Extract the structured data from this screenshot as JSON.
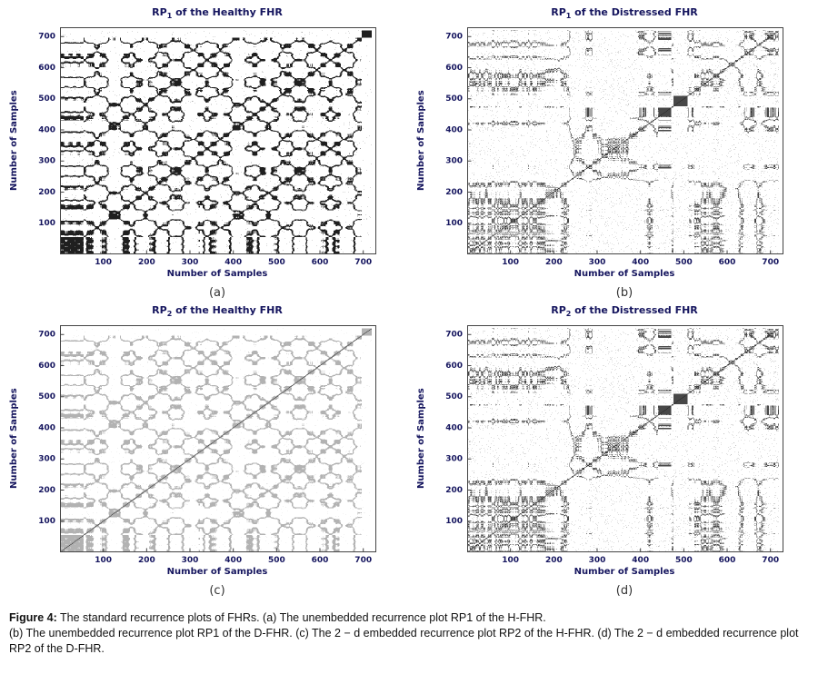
{
  "figure": {
    "caption_label": "Figure 4:",
    "caption_line1": "The standard recurrence plots of FHRs. (a) The unembedded recurrence plot RP1 of the H-FHR.",
    "caption_line2": "(b) The unembedded recurrence plot RP1 of the D-FHR. (c) The 2 − d embedded recurrence plot RP2 of the H-FHR. (d) The 2 − d embedded recurrence plot RP2 of the D-FHR."
  },
  "chart_data": [
    {
      "type": "heatmap",
      "subtype": "recurrence-plot",
      "panel_label": "(a)",
      "title_prefix": "RP",
      "title_sub": "1",
      "title_rest": " of the Healthy FHR",
      "xlabel": "Number of Samples",
      "ylabel": "Number of Samples",
      "xlim": [
        0,
        730
      ],
      "ylim": [
        0,
        730
      ],
      "xticks": [
        100,
        200,
        300,
        400,
        500,
        600,
        700
      ],
      "yticks": [
        100,
        200,
        300,
        400,
        500,
        600,
        700
      ],
      "n_samples": 720,
      "text_color": "#15155e",
      "description": "Dense black symmetric recurrence texture with quasi-periodic block/checkerboard structure, dense block at lower-left and a solid black square near (700,700).",
      "render": {
        "seed": 7,
        "signal": "healthy",
        "eps": 0.6,
        "ink": "#000000",
        "alpha": 0.88,
        "speckle": 0.004,
        "diag": true
      }
    },
    {
      "type": "heatmap",
      "subtype": "recurrence-plot",
      "panel_label": "(b)",
      "title_prefix": "RP",
      "title_sub": "1",
      "title_rest": " of the Distressed FHR",
      "xlabel": "Number of Samples",
      "ylabel": "Number of Samples",
      "xlim": [
        0,
        730
      ],
      "ylim": [
        0,
        730
      ],
      "xticks": [
        100,
        200,
        300,
        400,
        500,
        600,
        700
      ],
      "yticks": [
        100,
        200,
        300,
        400,
        500,
        600,
        700
      ],
      "n_samples": 720,
      "text_color": "#15155e",
      "description": "Sparse gray speckled recurrence texture with a clear main diagonal line, dense patch near (450,450) and white bands near samples 480-510.",
      "render": {
        "seed": 21,
        "signal": "distressed",
        "eps": 0.22,
        "ink": "#1a1a1a",
        "alpha": 0.8,
        "speckle": 0.015,
        "diag": true
      }
    },
    {
      "type": "heatmap",
      "subtype": "recurrence-plot",
      "panel_label": "(c)",
      "title_prefix": "RP",
      "title_sub": "2",
      "title_rest": " of the Healthy FHR",
      "xlabel": "Number of Samples",
      "ylabel": "Number of Samples",
      "xlim": [
        0,
        730
      ],
      "ylim": [
        0,
        730
      ],
      "xticks": [
        100,
        200,
        300,
        400,
        500,
        600,
        700
      ],
      "yticks": [
        100,
        200,
        300,
        400,
        500,
        600,
        700
      ],
      "n_samples": 720,
      "text_color": "#15155e",
      "description": "Light gray version of the healthy recurrence texture (2-d embedded), same periodic block pattern with darker band at lower-left.",
      "render": {
        "seed": 7,
        "signal": "healthy",
        "eps": 0.62,
        "ink": "#000000",
        "alpha": 0.3,
        "speckle": 0.004,
        "diag": true
      }
    },
    {
      "type": "heatmap",
      "subtype": "recurrence-plot",
      "panel_label": "(d)",
      "title_prefix": "RP",
      "title_sub": "2",
      "title_rest": " of the Distressed FHR",
      "xlabel": "Number of Samples",
      "ylabel": "Number of Samples",
      "xlim": [
        0,
        730
      ],
      "ylim": [
        0,
        730
      ],
      "xticks": [
        100,
        200,
        300,
        400,
        500,
        600,
        700
      ],
      "yticks": [
        100,
        200,
        300,
        400,
        500,
        600,
        700
      ],
      "n_samples": 720,
      "text_color": "#15155e",
      "description": "Sparse gray speckled recurrence texture nearly identical to panel (b), with main diagonal line, dense patch near (450,450) and white bands near samples 480-510.",
      "render": {
        "seed": 21,
        "signal": "distressed",
        "eps": 0.22,
        "ink": "#1a1a1a",
        "alpha": 0.8,
        "speckle": 0.015,
        "diag": true
      }
    }
  ]
}
